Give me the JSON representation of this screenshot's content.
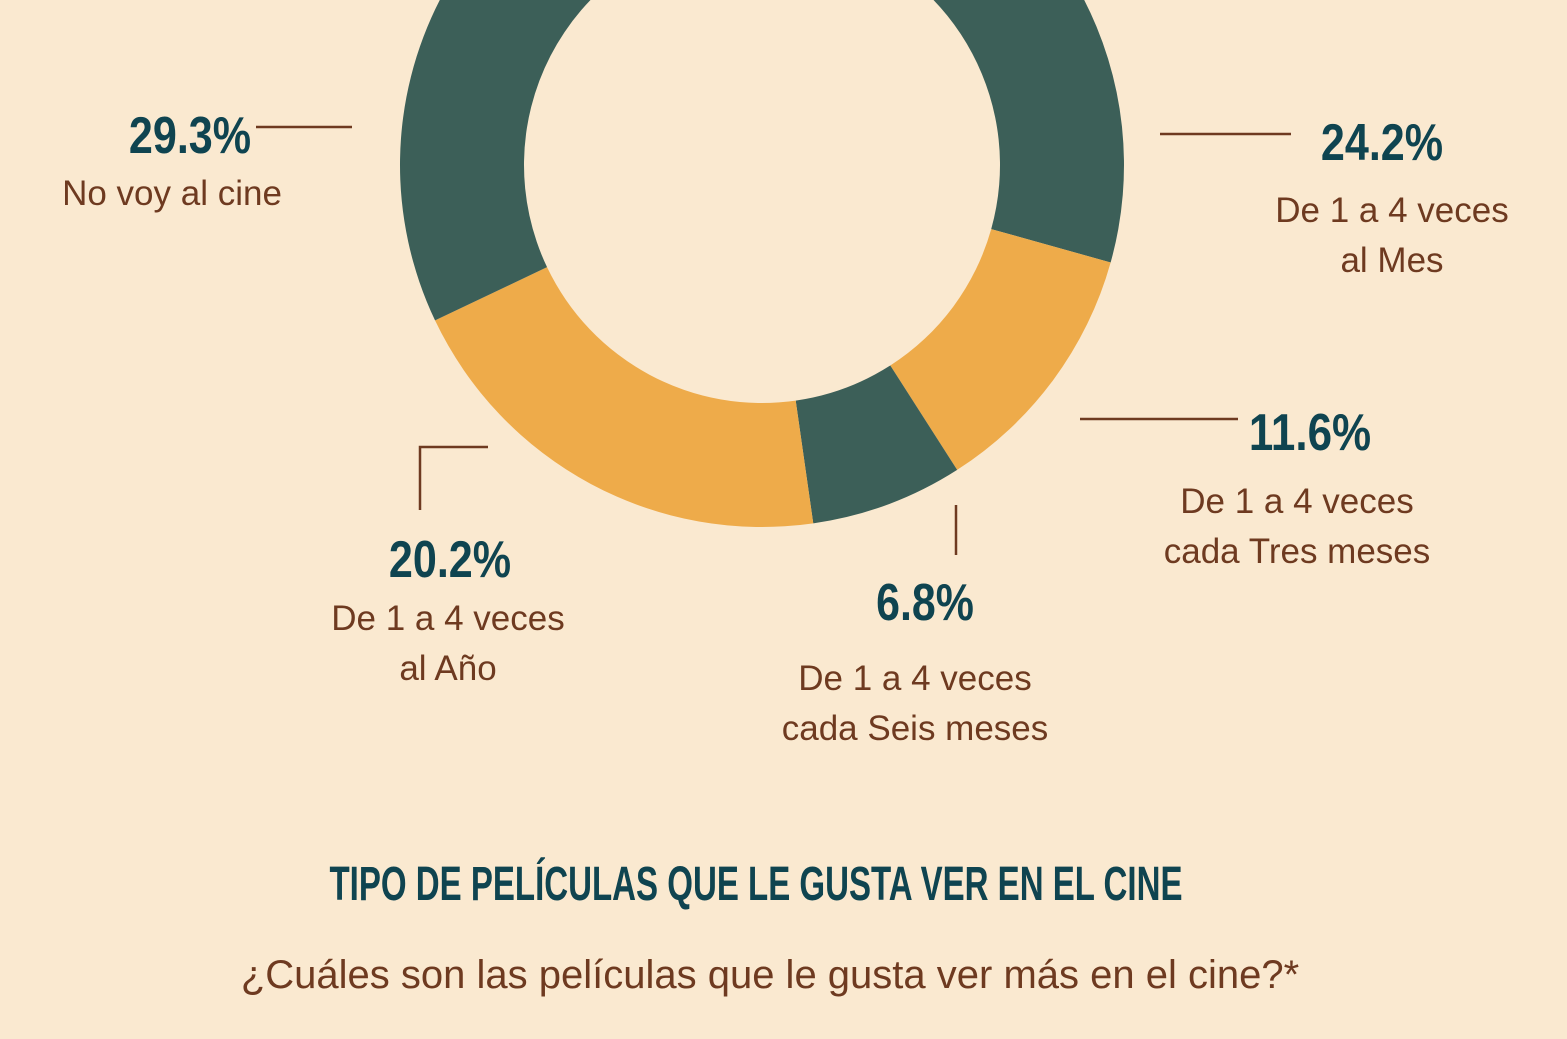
{
  "chart_data": {
    "type": "donut",
    "title": "TIPO DE PELÍCULAS QUE LE GUSTA VER EN EL CINE",
    "subtitle": "¿Cuáles son las películas que le gusta ver más en el cine?*",
    "categories": [
      [
        "De 1 a 4 veces",
        "al Mes"
      ],
      [
        "De 1 a 4 veces",
        "cada Tres meses"
      ],
      [
        "De 1 a 4 veces",
        "cada Seis meses"
      ],
      [
        "De 1 a 4 veces",
        "al Año"
      ],
      [
        "No voy al cine"
      ]
    ],
    "values": [
      24.2,
      11.6,
      6.8,
      20.2,
      29.3
    ],
    "value_labels": [
      "24.2%",
      "11.6%",
      "6.8%",
      "20.2%",
      "29.3%"
    ],
    "colors": [
      "#3c5f58",
      "#eeab4a",
      "#3c5f58",
      "#eeab4a",
      "#3c5f58"
    ]
  }
}
